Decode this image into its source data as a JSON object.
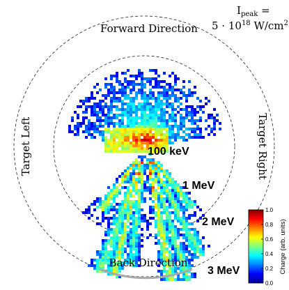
{
  "chart_data": {
    "type": "heatmap",
    "projection": "polar",
    "value_range": [
      0.0,
      1.0
    ],
    "colormap": "jet",
    "grid_rings_dashed": true,
    "energy_rings": [
      {
        "label": "100 keV",
        "energy_mev": 0.1
      },
      {
        "label": "1 MeV",
        "energy_mev": 1
      },
      {
        "label": "2 MeV",
        "energy_mev": 2
      },
      {
        "label": "3 MeV",
        "energy_mev": 3
      }
    ],
    "directions": {
      "forward": "Forward Direction",
      "back": "Back Direction",
      "left": "Target Left",
      "right": "Target Right"
    },
    "annotation": {
      "line1": "I",
      "line1_sub": "peak",
      "line1_tail": " =",
      "line2": "5 · 10",
      "line2_sup": "18",
      "line2_tail": " W/cm",
      "line2_sup2": "2"
    },
    "colorbar": {
      "label": "Charge (arb. units)",
      "ticks": [
        "0.0",
        "0.2",
        "0.4",
        "0.6",
        "0.8",
        "1.0"
      ],
      "tick_values": [
        0.0,
        0.2,
        0.4,
        0.6,
        0.8,
        1.0
      ]
    },
    "back_arc_color": "#aaaaaa"
  }
}
